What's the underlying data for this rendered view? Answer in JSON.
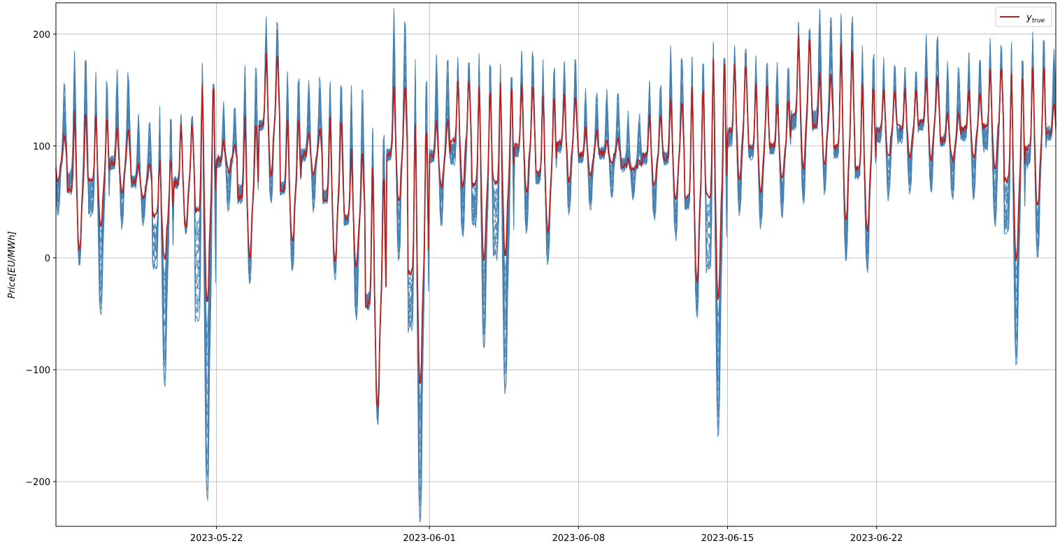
{
  "chart_data": {
    "type": "line",
    "title": "",
    "xlabel": "",
    "ylabel": "Price[EU/MWh]",
    "ylim": [
      -240,
      228
    ],
    "xlim": [
      "2023-05-14T11:00",
      "2023-06-30T10:00"
    ],
    "grid": true,
    "legend": {
      "placement": "top-right",
      "entries": [
        "y_true"
      ]
    },
    "legend_display": {
      "base": "y",
      "sub": "true"
    },
    "x_ticks": [
      "2023-05-22",
      "2023-06-01",
      "2023-06-08",
      "2023-06-15",
      "2023-06-22"
    ],
    "y_ticks": [
      200,
      100,
      0,
      -100,
      -200
    ],
    "y_tick_labels": [
      "200",
      "100",
      "0",
      "−100",
      "−200"
    ],
    "colors": {
      "y_true": "#b22222",
      "ensemble": "#4682b4",
      "grid": "#b0b0b0"
    },
    "series": [
      {
        "name": "y_true",
        "role": "actual",
        "x": [
          "2023-05-14",
          "2023-05-15",
          "2023-05-16",
          "2023-05-17",
          "2023-05-18",
          "2023-05-19",
          "2023-05-20",
          "2023-05-21",
          "2023-05-22",
          "2023-05-23",
          "2023-05-24",
          "2023-05-25",
          "2023-05-26",
          "2023-05-27",
          "2023-05-28",
          "2023-05-29",
          "2023-05-30",
          "2023-05-31",
          "2023-06-01",
          "2023-06-02",
          "2023-06-03",
          "2023-06-04",
          "2023-06-05",
          "2023-06-06",
          "2023-06-07",
          "2023-06-08",
          "2023-06-09",
          "2023-06-10",
          "2023-06-11",
          "2023-06-12",
          "2023-06-13",
          "2023-06-14",
          "2023-06-15",
          "2023-06-16",
          "2023-06-17",
          "2023-06-18",
          "2023-06-19",
          "2023-06-20",
          "2023-06-21",
          "2023-06-22",
          "2023-06-23",
          "2023-06-24",
          "2023-06-25",
          "2023-06-26",
          "2023-06-27",
          "2023-06-28",
          "2023-06-29",
          "2023-06-30"
        ],
        "min": [
          70,
          8,
          30,
          60,
          55,
          -1,
          28,
          -40,
          78,
          3,
          75,
          15,
          75,
          0,
          -5,
          -130,
          50,
          -110,
          65,
          65,
          0,
          5,
          60,
          25,
          70,
          75,
          85,
          80,
          65,
          50,
          -20,
          -35,
          70,
          60,
          70,
          80,
          85,
          35,
          25,
          90,
          92,
          90,
          88,
          90,
          80,
          0,
          45,
          90
        ],
        "max": [
          110,
          133,
          126,
          117,
          85,
          90,
          120,
          158,
          103,
          125,
          182,
          125,
          115,
          125,
          95,
          80,
          155,
          120,
          125,
          160,
          155,
          155,
          155,
          147,
          147,
          115,
          105,
          87,
          127,
          143,
          155,
          180,
          175,
          155,
          140,
          198,
          165,
          190,
          155,
          150,
          150,
          163,
          130,
          150,
          170,
          165,
          172,
          140
        ],
        "daily_peak_count": [
          2,
          2,
          2,
          2,
          2,
          2,
          2,
          2,
          2,
          2,
          2,
          2,
          2,
          2,
          2,
          2,
          2,
          2,
          2,
          2,
          2,
          2,
          2,
          2,
          2,
          2,
          2,
          2,
          2,
          2,
          2,
          2,
          2,
          2,
          2,
          2,
          2,
          2,
          2,
          2,
          2,
          2,
          2,
          2,
          2,
          2,
          2,
          2
        ]
      },
      {
        "name": "",
        "role": "forecast-ensemble",
        "x": [
          "2023-05-14",
          "2023-05-15",
          "2023-05-16",
          "2023-05-17",
          "2023-05-18",
          "2023-05-19",
          "2023-05-20",
          "2023-05-21",
          "2023-05-22",
          "2023-05-23",
          "2023-05-24",
          "2023-05-25",
          "2023-05-26",
          "2023-05-27",
          "2023-05-28",
          "2023-05-29",
          "2023-05-30",
          "2023-05-31",
          "2023-06-01",
          "2023-06-02",
          "2023-06-03",
          "2023-06-04",
          "2023-06-05",
          "2023-06-06",
          "2023-06-07",
          "2023-06-08",
          "2023-06-09",
          "2023-06-10",
          "2023-06-11",
          "2023-06-12",
          "2023-06-13",
          "2023-06-14",
          "2023-06-15",
          "2023-06-16",
          "2023-06-17",
          "2023-06-18",
          "2023-06-19",
          "2023-06-20",
          "2023-06-21",
          "2023-06-22",
          "2023-06-23",
          "2023-06-24",
          "2023-06-25",
          "2023-06-26",
          "2023-06-27",
          "2023-06-28",
          "2023-06-29",
          "2023-06-30"
        ],
        "lower": [
          40,
          -5,
          -50,
          30,
          30,
          -110,
          25,
          -215,
          45,
          -20,
          50,
          -10,
          45,
          -15,
          -55,
          -145,
          0,
          -235,
          30,
          20,
          -80,
          -120,
          25,
          -5,
          40,
          45,
          55,
          55,
          35,
          20,
          -50,
          -155,
          40,
          30,
          40,
          50,
          60,
          0,
          -10,
          55,
          60,
          60,
          55,
          55,
          30,
          -95,
          0,
          60
        ],
        "upper": [
          160,
          188,
          165,
          170,
          128,
          135,
          128,
          172,
          140,
          176,
          215,
          170,
          165,
          160,
          158,
          120,
          225,
          178,
          185,
          180,
          185,
          172,
          190,
          175,
          180,
          152,
          152,
          130,
          160,
          190,
          182,
          190,
          190,
          180,
          178,
          210,
          228,
          222,
          190,
          178,
          172,
          202,
          178,
          185,
          195,
          190,
          202,
          190
        ]
      }
    ]
  }
}
